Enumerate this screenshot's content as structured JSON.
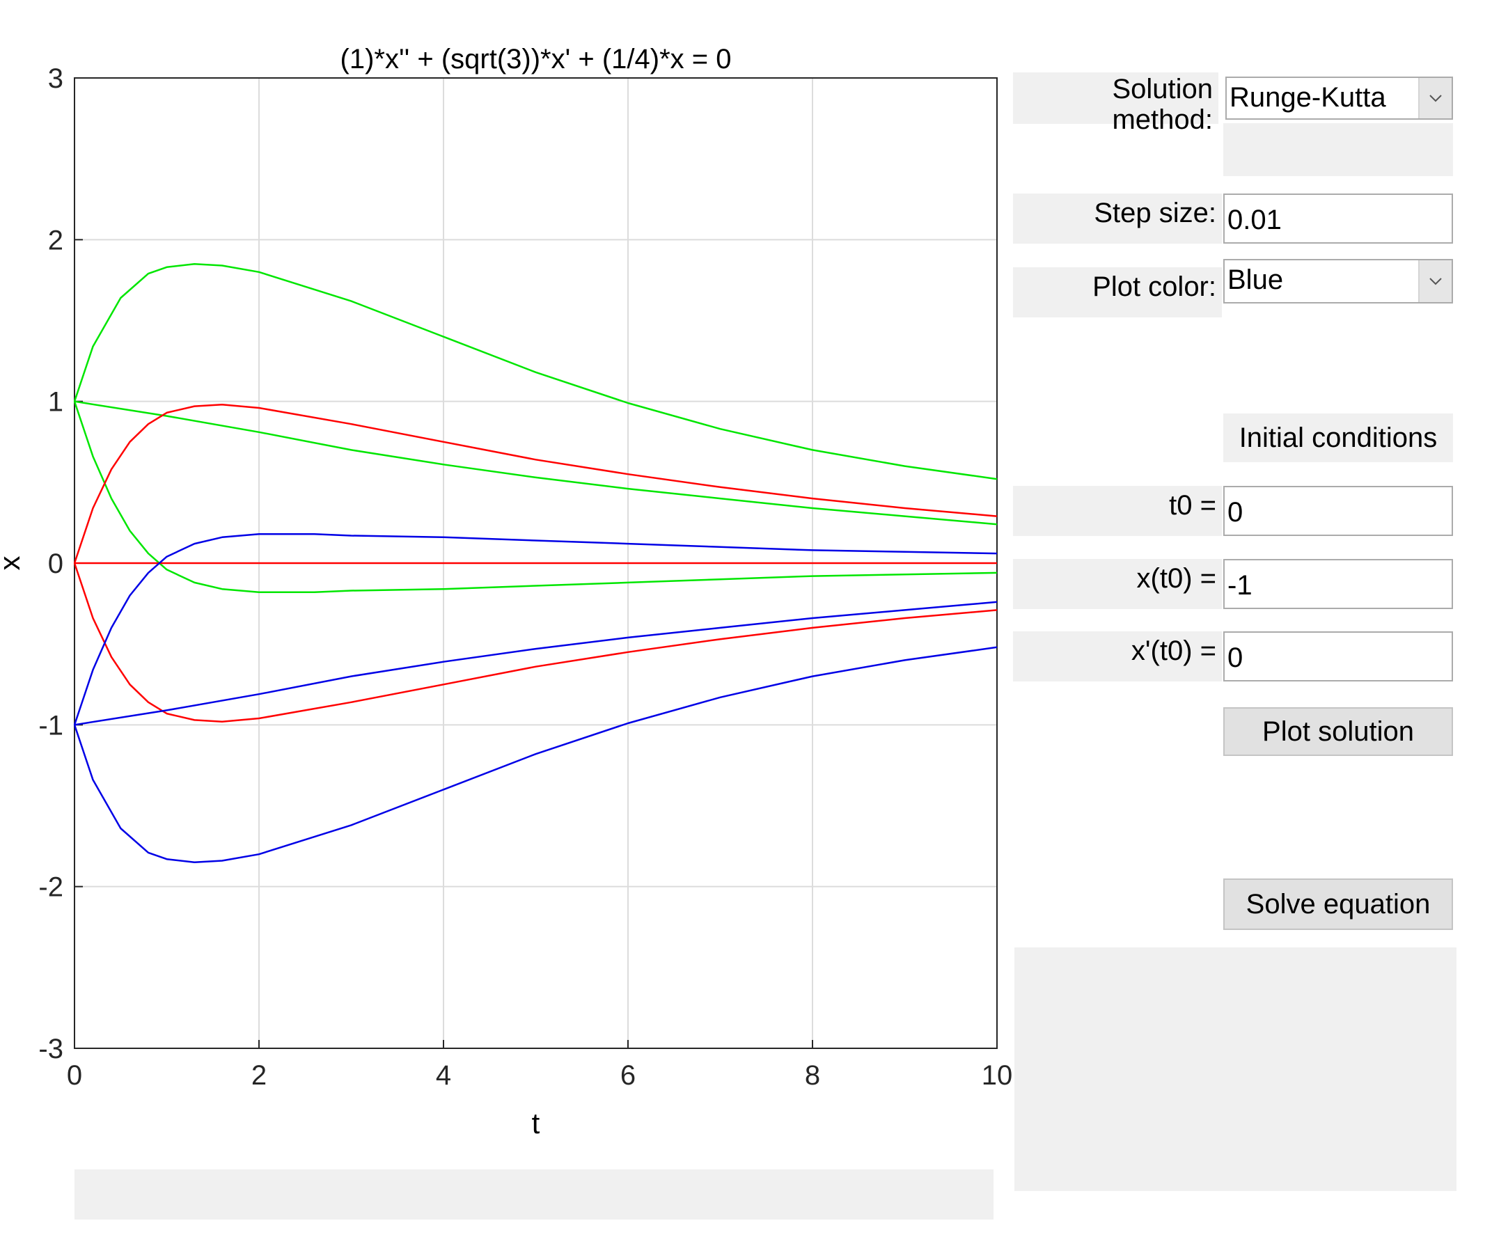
{
  "chart_data": {
    "type": "line",
    "title": "(1)*x'' + (sqrt(3))*x' + (1/4)*x = 0",
    "xlabel": "t",
    "ylabel": "x",
    "xlim": [
      0,
      10
    ],
    "ylim": [
      -3,
      3
    ],
    "xticks": [
      "0",
      "2",
      "4",
      "6",
      "8",
      "10"
    ],
    "yticks": [
      "-3",
      "-2",
      "-1",
      "0",
      "1",
      "2",
      "3"
    ],
    "grid": true,
    "series": [
      {
        "color": "#00e600",
        "x": [
          0,
          0.2,
          0.5,
          0.8,
          1.0,
          1.3,
          1.6,
          2.0,
          3.0,
          4.0,
          5.0,
          6.0,
          7.0,
          8.0,
          9.0,
          10.0
        ],
        "y": [
          1.0,
          1.34,
          1.64,
          1.79,
          1.83,
          1.85,
          1.84,
          1.8,
          1.62,
          1.4,
          1.18,
          0.99,
          0.83,
          0.7,
          0.6,
          0.52
        ]
      },
      {
        "color": "#00e600",
        "x": [
          0,
          1,
          2,
          3,
          4,
          5,
          6,
          7,
          8,
          9,
          10
        ],
        "y": [
          1.0,
          0.91,
          0.81,
          0.7,
          0.61,
          0.53,
          0.46,
          0.4,
          0.34,
          0.29,
          0.24
        ]
      },
      {
        "color": "#00e600",
        "x": [
          0,
          0.2,
          0.4,
          0.6,
          0.8,
          1.0,
          1.3,
          1.6,
          2.0,
          2.6,
          3.0,
          4.0,
          5.0,
          6.0,
          7.0,
          8.0,
          9.0,
          10.0
        ],
        "y": [
          1.0,
          0.66,
          0.4,
          0.2,
          0.06,
          -0.04,
          -0.12,
          -0.16,
          -0.18,
          -0.18,
          -0.17,
          -0.16,
          -0.14,
          -0.12,
          -0.1,
          -0.08,
          -0.07,
          -0.06
        ]
      },
      {
        "color": "#ff0000",
        "x": [
          0,
          0.2,
          0.4,
          0.6,
          0.8,
          1.0,
          1.3,
          1.6,
          2.0,
          3.0,
          4.0,
          5.0,
          6.0,
          7.0,
          8.0,
          9.0,
          10.0
        ],
        "y": [
          0.0,
          0.34,
          0.58,
          0.75,
          0.86,
          0.93,
          0.97,
          0.98,
          0.96,
          0.86,
          0.75,
          0.64,
          0.55,
          0.47,
          0.4,
          0.34,
          0.29
        ]
      },
      {
        "color": "#ff0000",
        "x": [
          0,
          10
        ],
        "y": [
          0.0,
          0.0
        ]
      },
      {
        "color": "#ff0000",
        "x": [
          0,
          0.2,
          0.4,
          0.6,
          0.8,
          1.0,
          1.3,
          1.6,
          2.0,
          3.0,
          4.0,
          5.0,
          6.0,
          7.0,
          8.0,
          9.0,
          10.0
        ],
        "y": [
          0.0,
          -0.34,
          -0.58,
          -0.75,
          -0.86,
          -0.93,
          -0.97,
          -0.98,
          -0.96,
          -0.86,
          -0.75,
          -0.64,
          -0.55,
          -0.47,
          -0.4,
          -0.34,
          -0.29
        ]
      },
      {
        "color": "#0000e6",
        "x": [
          0,
          0.2,
          0.4,
          0.6,
          0.8,
          1.0,
          1.3,
          1.6,
          2.0,
          2.6,
          3.0,
          4.0,
          5.0,
          6.0,
          7.0,
          8.0,
          9.0,
          10.0
        ],
        "y": [
          -1.0,
          -0.66,
          -0.4,
          -0.2,
          -0.06,
          0.04,
          0.12,
          0.16,
          0.18,
          0.18,
          0.17,
          0.16,
          0.14,
          0.12,
          0.1,
          0.08,
          0.07,
          0.06
        ]
      },
      {
        "color": "#0000e6",
        "x": [
          0,
          1,
          2,
          3,
          4,
          5,
          6,
          7,
          8,
          9,
          10
        ],
        "y": [
          -1.0,
          -0.91,
          -0.81,
          -0.7,
          -0.61,
          -0.53,
          -0.46,
          -0.4,
          -0.34,
          -0.29,
          -0.24
        ]
      },
      {
        "color": "#0000e6",
        "x": [
          0,
          0.2,
          0.5,
          0.8,
          1.0,
          1.3,
          1.6,
          2.0,
          3.0,
          4.0,
          5.0,
          6.0,
          7.0,
          8.0,
          9.0,
          10.0
        ],
        "y": [
          -1.0,
          -1.34,
          -1.64,
          -1.79,
          -1.83,
          -1.85,
          -1.84,
          -1.8,
          -1.62,
          -1.4,
          -1.18,
          -0.99,
          -0.83,
          -0.7,
          -0.6,
          -0.52
        ]
      }
    ]
  },
  "controls": {
    "solution_method_label": "Solution method:",
    "solution_method_value": "Runge-Kutta",
    "step_size_label": "Step size:",
    "step_size_value": "0.01",
    "plot_color_label": "Plot color:",
    "plot_color_value": "Blue",
    "initial_conditions_label": "Initial conditions",
    "t0_label": "t0 =",
    "t0_value": "0",
    "x_t0_label": "x(t0) =",
    "x_t0_value": "-1",
    "xp_t0_label": "x'(t0) =",
    "xp_t0_value": "0",
    "plot_solution_label": "Plot solution",
    "solve_equation_label": "Solve equation"
  }
}
